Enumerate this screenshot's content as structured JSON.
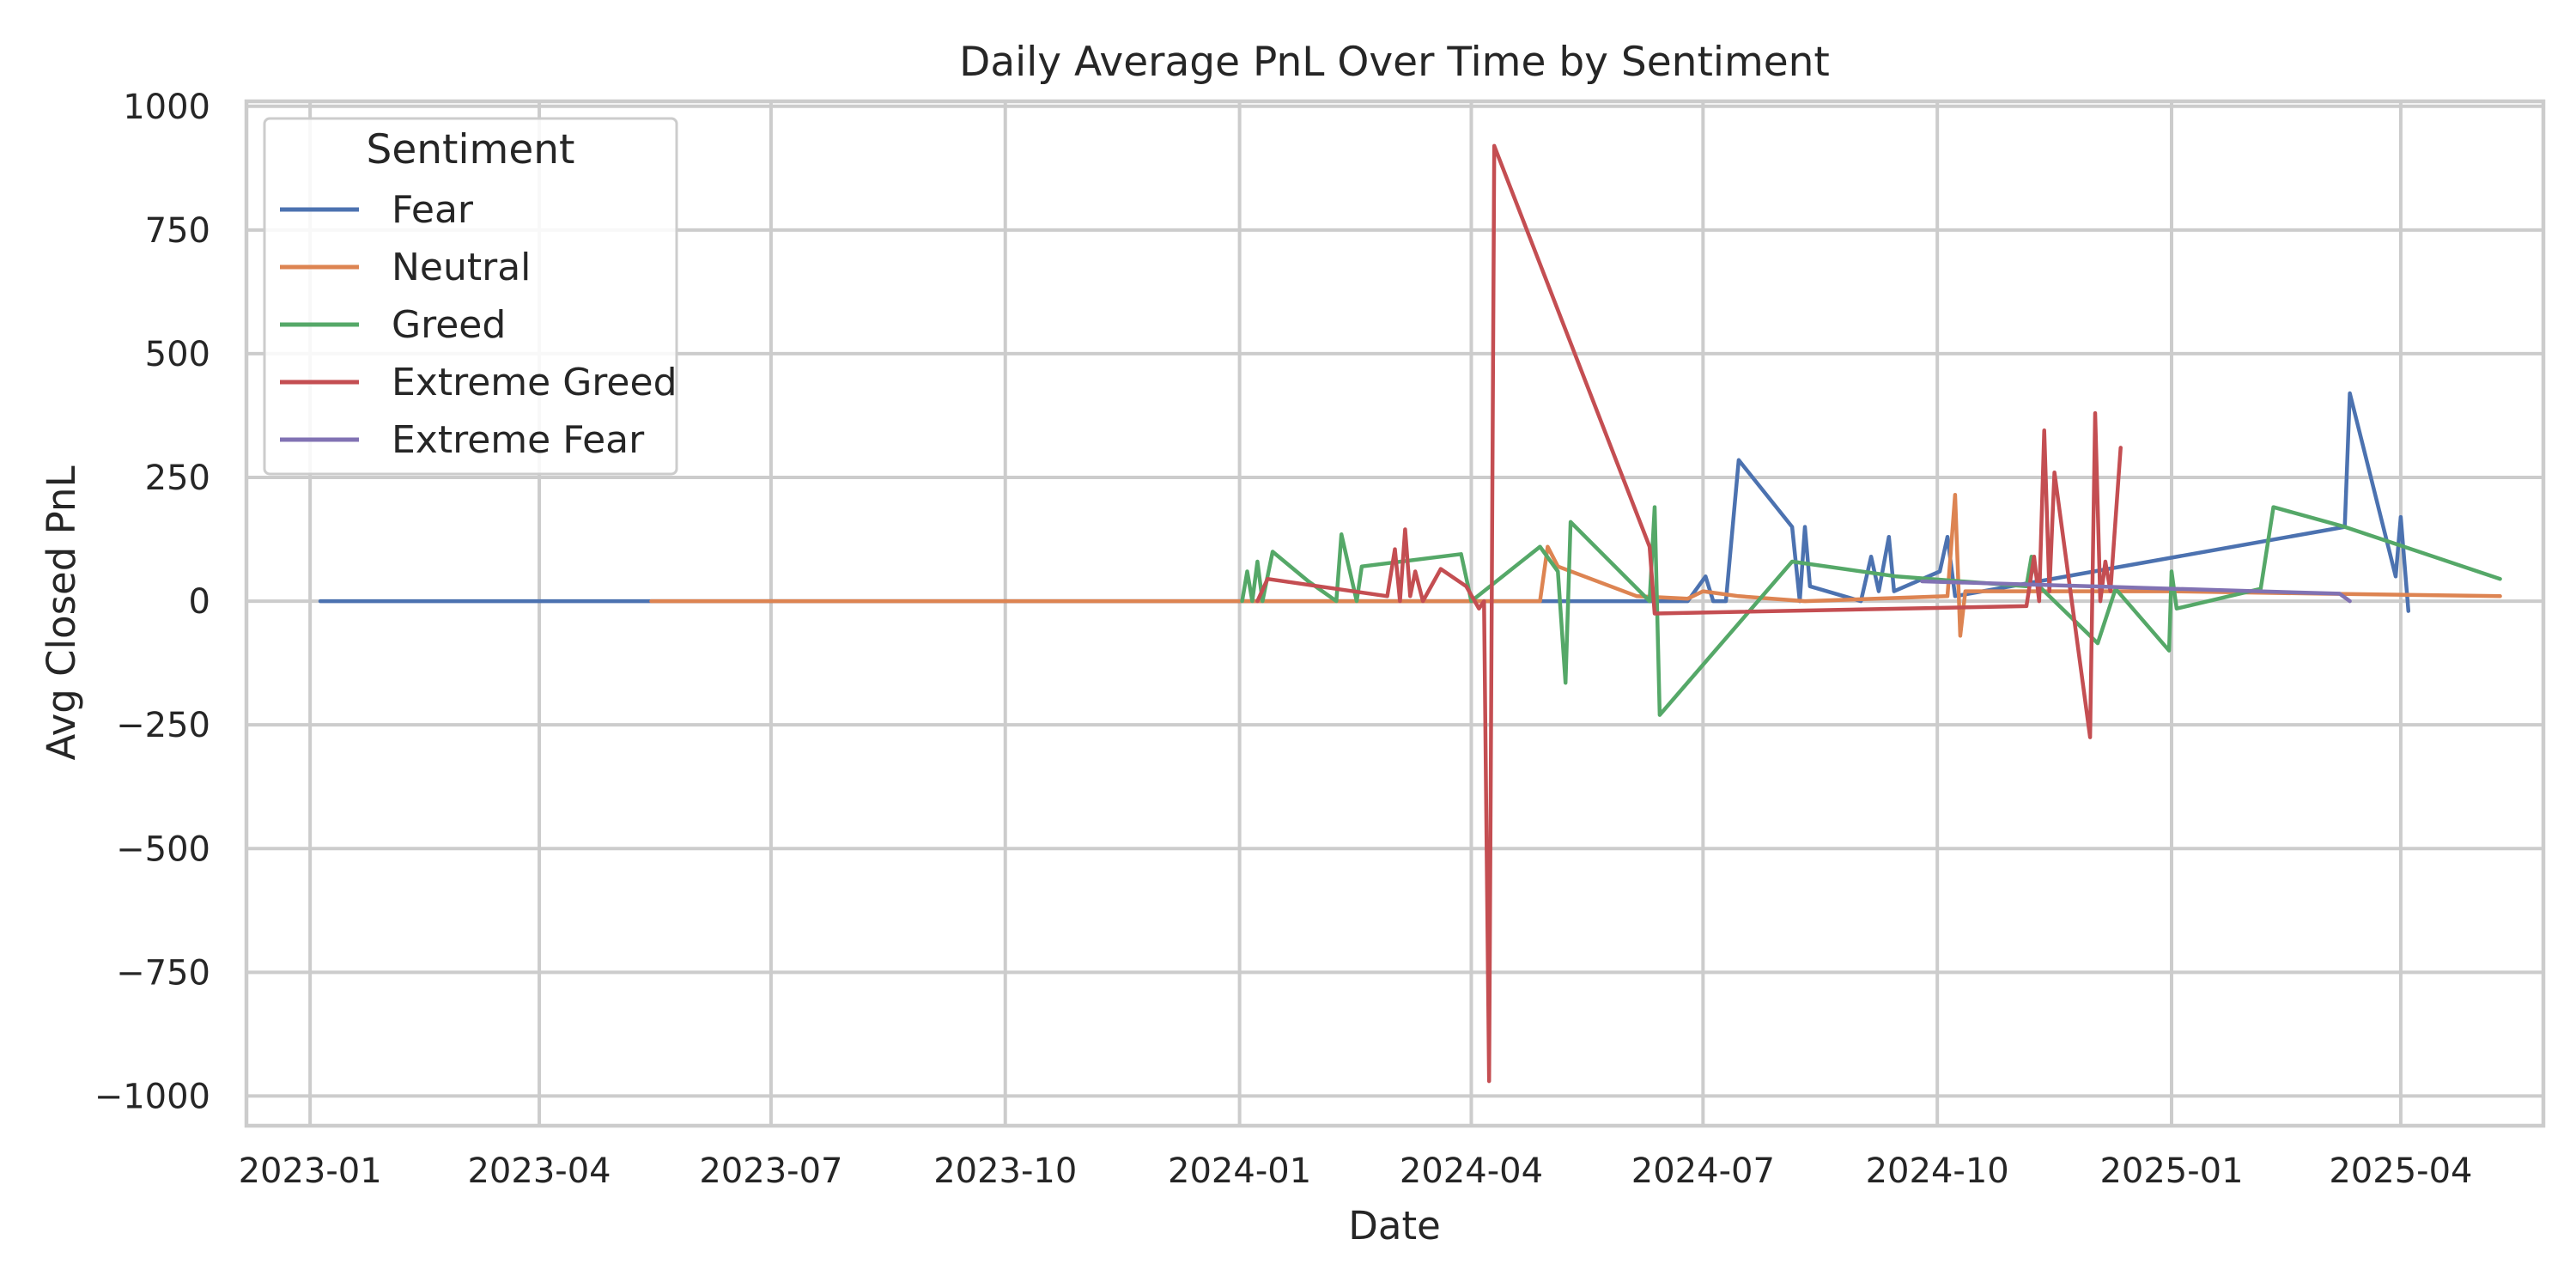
{
  "chart_data": {
    "type": "line",
    "title": "Daily Average PnL Over Time by Sentiment",
    "xlabel": "Date",
    "ylabel": "Avg Closed PnL",
    "x_is_date": true,
    "xlim": [
      "2022-12-07",
      "2025-05-27"
    ],
    "ylim": [
      -1060,
      1010
    ],
    "x_ticks": [
      "2023-01",
      "2023-04",
      "2023-07",
      "2023-10",
      "2024-01",
      "2024-04",
      "2024-07",
      "2024-10",
      "2025-01",
      "2025-04"
    ],
    "y_ticks": [
      -1000,
      -750,
      -500,
      -250,
      0,
      250,
      500,
      750,
      1000
    ],
    "y_tick_labels": [
      "−1000",
      "−750",
      "−500",
      "−250",
      "0",
      "250",
      "500",
      "750",
      "1000"
    ],
    "grid": true,
    "legend": {
      "title": "Sentiment",
      "placement": "top-left"
    },
    "series": [
      {
        "name": "Fear",
        "color": "#4c72b0",
        "x": [
          "2023-01-05",
          "2023-05-15",
          "2024-01-02",
          "2024-06-25",
          "2024-07-02",
          "2024-07-05",
          "2024-07-10",
          "2024-07-15",
          "2024-08-05",
          "2024-08-08",
          "2024-08-10",
          "2024-08-12",
          "2024-09-01",
          "2024-09-05",
          "2024-09-08",
          "2024-09-12",
          "2024-09-14",
          "2024-10-02",
          "2024-10-05",
          "2024-10-08",
          "2025-03-10",
          "2025-03-12",
          "2025-03-30",
          "2025-04-01",
          "2025-04-04"
        ],
        "y": [
          0,
          0,
          0,
          0,
          50,
          0,
          0,
          285,
          150,
          0,
          150,
          30,
          0,
          90,
          20,
          130,
          20,
          60,
          130,
          10,
          150,
          420,
          50,
          170,
          -20
        ]
      },
      {
        "name": "Neutral",
        "color": "#dd8452",
        "x": [
          "2023-05-15",
          "2024-01-02",
          "2024-04-01",
          "2024-04-28",
          "2024-05-01",
          "2024-05-05",
          "2024-06-05",
          "2024-06-25",
          "2024-07-01",
          "2024-07-15",
          "2024-08-10",
          "2024-10-05",
          "2024-10-08",
          "2024-10-10",
          "2024-10-12",
          "2025-01-01",
          "2025-03-01",
          "2025-05-10"
        ],
        "y": [
          0,
          0,
          0,
          0,
          110,
          70,
          10,
          5,
          20,
          10,
          0,
          10,
          215,
          -70,
          20,
          20,
          15,
          10
        ]
      },
      {
        "name": "Greed",
        "color": "#55a868",
        "x": [
          "2024-01-02",
          "2024-01-04",
          "2024-01-06",
          "2024-01-08",
          "2024-01-10",
          "2024-01-14",
          "2024-01-28",
          "2024-02-08",
          "2024-02-10",
          "2024-02-16",
          "2024-02-18",
          "2024-03-28",
          "2024-04-01",
          "2024-04-28",
          "2024-05-05",
          "2024-05-08",
          "2024-05-10",
          "2024-06-10",
          "2024-06-12",
          "2024-06-14",
          "2024-08-05",
          "2024-09-15",
          "2024-11-05",
          "2024-11-07",
          "2024-11-10",
          "2024-12-03",
          "2024-12-10",
          "2024-12-31",
          "2025-01-01",
          "2025-01-03",
          "2025-02-05",
          "2025-02-10",
          "2025-03-10",
          "2025-05-10"
        ],
        "y": [
          0,
          60,
          0,
          80,
          0,
          100,
          40,
          0,
          135,
          0,
          70,
          95,
          0,
          110,
          60,
          -165,
          160,
          0,
          190,
          -230,
          80,
          50,
          30,
          90,
          30,
          -85,
          25,
          -100,
          60,
          -15,
          25,
          190,
          150,
          45
        ]
      },
      {
        "name": "Extreme Greed",
        "color": "#c44e52",
        "x": [
          "2024-01-08",
          "2024-01-12",
          "2024-02-28",
          "2024-03-02",
          "2024-03-04",
          "2024-03-06",
          "2024-03-08",
          "2024-03-10",
          "2024-03-13",
          "2024-03-20",
          "2024-03-30",
          "2024-04-04",
          "2024-04-06",
          "2024-04-08",
          "2024-04-10",
          "2024-06-10",
          "2024-06-12",
          "2024-11-05",
          "2024-11-08",
          "2024-11-10",
          "2024-11-12",
          "2024-11-14",
          "2024-11-16",
          "2024-11-30",
          "2024-12-02",
          "2024-12-04",
          "2024-12-06",
          "2024-12-08",
          "2024-12-12"
        ],
        "y": [
          0,
          45,
          10,
          105,
          0,
          145,
          10,
          60,
          0,
          65,
          30,
          -15,
          0,
          -970,
          920,
          110,
          -25,
          -10,
          90,
          0,
          345,
          20,
          260,
          -275,
          380,
          0,
          80,
          20,
          310
        ]
      },
      {
        "name": "Extreme Fear",
        "color": "#8172b3",
        "x": [
          "2024-09-25",
          "2025-03-08",
          "2025-03-12"
        ],
        "y": [
          40,
          15,
          0
        ]
      }
    ]
  }
}
